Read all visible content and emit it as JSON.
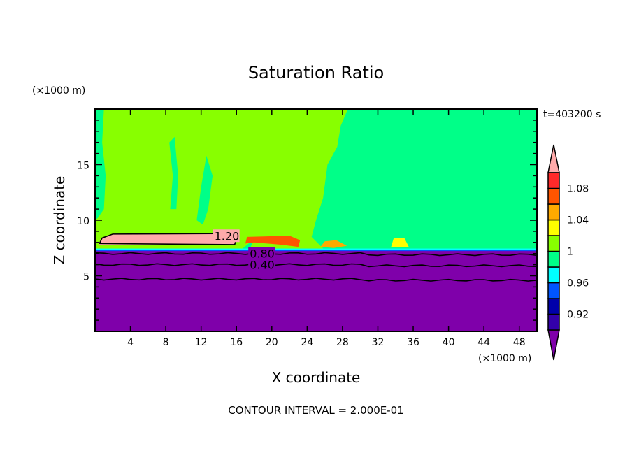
{
  "chart_data": {
    "type": "heatmap",
    "subtype": "filled-contour",
    "title": "Saturation Ratio",
    "xlabel": "X coordinate",
    "ylabel": "Z coordinate",
    "x_unit": "(×1000 m)",
    "y_unit": "(×1000 m)",
    "time_label": "t=403200 s",
    "footer": "CONTOUR INTERVAL = 2.000E-01",
    "xlim": [
      0,
      50
    ],
    "ylim": [
      0,
      20
    ],
    "xticks": [
      4,
      8,
      12,
      16,
      20,
      24,
      28,
      32,
      36,
      40,
      44,
      48
    ],
    "yticks": [
      5,
      10,
      15
    ],
    "colorbar": {
      "levels": [
        0.9,
        0.92,
        0.94,
        0.96,
        0.98,
        1.0,
        1.02,
        1.04,
        1.06,
        1.08,
        1.1
      ],
      "labels": [
        "0.92",
        "0.96",
        "1",
        "1.04",
        "1.08"
      ],
      "label_values": [
        0.92,
        0.96,
        1.0,
        1.04,
        1.08
      ],
      "colors": [
        "#3300aa",
        "#0000aa",
        "#0055ff",
        "#00ffff",
        "#00ff88",
        "#88ff00",
        "#ffff00",
        "#ffaa00",
        "#ff5500",
        "#ff2a2a"
      ],
      "under_color": "#7f00aa",
      "over_color": "#ffaaaa",
      "extend": "both"
    },
    "regions": [
      {
        "value": "above 1.0 (lime)",
        "color": "#88ff00",
        "polygon": [
          [
            0,
            7.4
          ],
          [
            24,
            7.4
          ],
          [
            25,
            9
          ],
          [
            26,
            11
          ],
          [
            25.5,
            14
          ],
          [
            27,
            17
          ],
          [
            28,
            18
          ],
          [
            28.5,
            20
          ],
          [
            0,
            20
          ]
        ]
      },
      {
        "value": "0.98-1.0 (green)",
        "color": "#00ff88",
        "polygon": [
          [
            0.3,
            10.2
          ],
          [
            1,
            11
          ],
          [
            1.2,
            14
          ],
          [
            0.8,
            17
          ],
          [
            1,
            20
          ],
          [
            0,
            20
          ],
          [
            0,
            10
          ]
        ]
      },
      {
        "value": "0.98-1.0 (green)",
        "color": "#00ff88",
        "polygon": [
          [
            8.5,
            11
          ],
          [
            8.8,
            14
          ],
          [
            8.4,
            17
          ],
          [
            9,
            17.5
          ],
          [
            9.4,
            14
          ],
          [
            9.2,
            11
          ]
        ]
      },
      {
        "value": "0.98-1.0 (green)",
        "color": "#00ff88",
        "polygon": [
          [
            11.5,
            10
          ],
          [
            12,
            13
          ],
          [
            12.6,
            15.8
          ],
          [
            13.3,
            14
          ],
          [
            12.8,
            11
          ],
          [
            12.2,
            9.6
          ]
        ]
      },
      {
        "value": "0.98-1.0 (green)",
        "color": "#00ff88",
        "polygon": [
          [
            16.6,
            7.4
          ],
          [
            18,
            8.3
          ],
          [
            17.5,
            7.4
          ]
        ]
      },
      {
        "value": "0.98-1.0 (green)",
        "color": "#00ff88",
        "polygon": [
          [
            26,
            7.3
          ],
          [
            24.5,
            8.5
          ],
          [
            25,
            10
          ],
          [
            25.8,
            12
          ],
          [
            26.3,
            15
          ],
          [
            27.4,
            16.6
          ],
          [
            27.8,
            18.5
          ],
          [
            28.6,
            20
          ],
          [
            50,
            20
          ],
          [
            50,
            7.3
          ]
        ]
      },
      {
        "value": "above 1.1 (pink)",
        "color": "#ffaaaa",
        "polygon": [
          [
            0.4,
            7.8
          ],
          [
            0.8,
            8.4
          ],
          [
            2,
            8.75
          ],
          [
            15.5,
            8.8
          ],
          [
            16,
            8.4
          ],
          [
            15.8,
            7.8
          ]
        ]
      },
      {
        "value": "1.06-1.1 (red/orange)",
        "color": "#ff5500",
        "polygon": [
          [
            17,
            7.9
          ],
          [
            17.2,
            8.5
          ],
          [
            22,
            8.6
          ],
          [
            23.2,
            8.2
          ],
          [
            23,
            7.6
          ],
          [
            21,
            7.8
          ],
          [
            18,
            8
          ]
        ]
      },
      {
        "value": "1.02-1.06 (orange)",
        "color": "#ffaa00",
        "polygon": [
          [
            25.5,
            7.6
          ],
          [
            26,
            8.1
          ],
          [
            27.3,
            8.2
          ],
          [
            28.5,
            7.7
          ],
          [
            27,
            7.5
          ]
        ]
      },
      {
        "value": "1.02-1.06 (yellow)",
        "color": "#ffff00",
        "polygon": [
          [
            33.5,
            7.6
          ],
          [
            33.8,
            8.4
          ],
          [
            35,
            8.4
          ],
          [
            35.5,
            7.6
          ]
        ]
      },
      {
        "value": "below 0.9 (purple)",
        "color": "#7f00aa",
        "polygon": [
          [
            0,
            0
          ],
          [
            50,
            0
          ],
          [
            50,
            7.35
          ],
          [
            30,
            7.25
          ],
          [
            0,
            7.35
          ]
        ]
      }
    ],
    "contours": [
      {
        "label": "1.20",
        "z": 8.6
      },
      {
        "label": "0.80",
        "z": 7.0
      },
      {
        "label": "0.40",
        "z": 6.0
      },
      {
        "label": "",
        "z": 4.7
      }
    ]
  }
}
